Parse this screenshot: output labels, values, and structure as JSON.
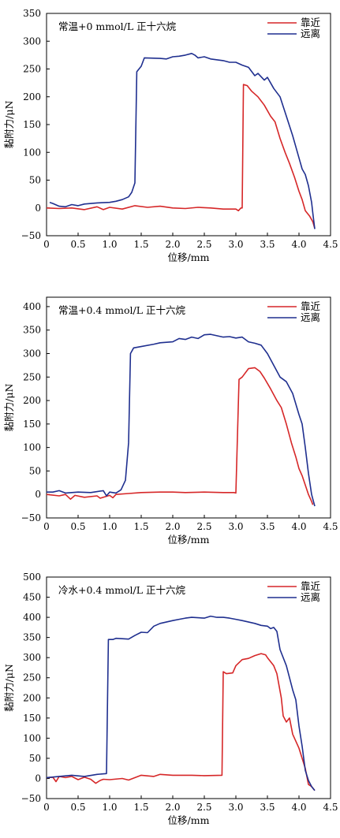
{
  "chart_data": [
    {
      "type": "line",
      "title": "常温+0 mmol/L 正十六烷",
      "xlabel": "位移/mm",
      "ylabel": "黏附力/μN",
      "xlim": [
        0,
        4.5
      ],
      "ylim": [
        -50,
        350
      ],
      "xticks": [
        "0",
        "0.5",
        "1.0",
        "1.5",
        "2.0",
        "2.5",
        "3.0",
        "3.5",
        "4.0",
        "4.5"
      ],
      "yticks": [
        "−50",
        "0",
        "50",
        "100",
        "150",
        "200",
        "250",
        "300",
        "350"
      ],
      "legend_position": "top-right",
      "series": [
        {
          "name": "靠近",
          "color": "#d62728",
          "points": [
            [
              0,
              0
            ],
            [
              0.2,
              -1
            ],
            [
              0.4,
              0
            ],
            [
              0.6,
              -3
            ],
            [
              0.8,
              2
            ],
            [
              0.9,
              -3
            ],
            [
              1.0,
              1
            ],
            [
              1.2,
              -2
            ],
            [
              1.4,
              4
            ],
            [
              1.6,
              1
            ],
            [
              1.8,
              3
            ],
            [
              2.0,
              0
            ],
            [
              2.2,
              -1
            ],
            [
              2.4,
              1
            ],
            [
              2.6,
              0
            ],
            [
              2.8,
              -2
            ],
            [
              3.0,
              -2
            ],
            [
              3.04,
              -5
            ],
            [
              3.08,
              0
            ],
            [
              3.1,
              0
            ],
            [
              3.12,
              222
            ],
            [
              3.18,
              220
            ],
            [
              3.25,
              210
            ],
            [
              3.35,
              200
            ],
            [
              3.45,
              185
            ],
            [
              3.55,
              165
            ],
            [
              3.62,
              155
            ],
            [
              3.7,
              125
            ],
            [
              3.78,
              100
            ],
            [
              3.85,
              80
            ],
            [
              3.93,
              55
            ],
            [
              4.0,
              30
            ],
            [
              4.05,
              15
            ],
            [
              4.1,
              -5
            ],
            [
              4.17,
              -15
            ],
            [
              4.22,
              -25
            ],
            [
              4.25,
              -37
            ]
          ]
        },
        {
          "name": "远离",
          "color": "#1f2f8f",
          "points": [
            [
              0.05,
              10
            ],
            [
              0.1,
              8
            ],
            [
              0.2,
              3
            ],
            [
              0.3,
              2
            ],
            [
              0.4,
              6
            ],
            [
              0.5,
              4
            ],
            [
              0.6,
              7
            ],
            [
              0.8,
              9
            ],
            [
              1.0,
              10
            ],
            [
              1.1,
              12
            ],
            [
              1.2,
              15
            ],
            [
              1.3,
              20
            ],
            [
              1.35,
              28
            ],
            [
              1.4,
              45
            ],
            [
              1.43,
              245
            ],
            [
              1.5,
              255
            ],
            [
              1.55,
              270
            ],
            [
              1.8,
              269
            ],
            [
              1.9,
              268
            ],
            [
              2.0,
              272
            ],
            [
              2.1,
              273
            ],
            [
              2.2,
              275
            ],
            [
              2.3,
              278
            ],
            [
              2.35,
              275
            ],
            [
              2.4,
              270
            ],
            [
              2.5,
              272
            ],
            [
              2.6,
              268
            ],
            [
              2.8,
              265
            ],
            [
              2.9,
              262
            ],
            [
              3.0,
              262
            ],
            [
              3.1,
              257
            ],
            [
              3.2,
              253
            ],
            [
              3.3,
              238
            ],
            [
              3.35,
              242
            ],
            [
              3.45,
              230
            ],
            [
              3.5,
              235
            ],
            [
              3.6,
              215
            ],
            [
              3.7,
              200
            ],
            [
              3.8,
              165
            ],
            [
              3.9,
              130
            ],
            [
              3.95,
              110
            ],
            [
              4.0,
              90
            ],
            [
              4.05,
              70
            ],
            [
              4.1,
              60
            ],
            [
              4.15,
              40
            ],
            [
              4.2,
              10
            ],
            [
              4.22,
              -10
            ],
            [
              4.25,
              -38
            ]
          ]
        }
      ]
    },
    {
      "type": "line",
      "title": "常温+0.4 mmol/L 正十六烷",
      "xlabel": "位移/mm",
      "ylabel": "黏附力/μN",
      "xlim": [
        0,
        4.5
      ],
      "ylim": [
        -50,
        420
      ],
      "xticks": [
        "0",
        "0.5",
        "1.0",
        "1.5",
        "2.0",
        "2.5",
        "3.0",
        "3.5",
        "4.0",
        "4.5"
      ],
      "yticks": [
        "−50",
        "0",
        "50",
        "100",
        "150",
        "200",
        "250",
        "300",
        "350",
        "400"
      ],
      "legend_position": "top-right",
      "series": [
        {
          "name": "靠近",
          "color": "#d62728",
          "points": [
            [
              0,
              0
            ],
            [
              0.2,
              -3
            ],
            [
              0.3,
              0
            ],
            [
              0.38,
              -10
            ],
            [
              0.45,
              -2
            ],
            [
              0.6,
              -6
            ],
            [
              0.8,
              -3
            ],
            [
              0.85,
              -8
            ],
            [
              1.0,
              -2
            ],
            [
              1.05,
              -7
            ],
            [
              1.1,
              0
            ],
            [
              1.3,
              2
            ],
            [
              1.5,
              4
            ],
            [
              1.8,
              5
            ],
            [
              2.0,
              5
            ],
            [
              2.2,
              4
            ],
            [
              2.5,
              5
            ],
            [
              2.8,
              4
            ],
            [
              2.97,
              4
            ],
            [
              3.0,
              3
            ],
            [
              3.05,
              245
            ],
            [
              3.1,
              250
            ],
            [
              3.2,
              268
            ],
            [
              3.3,
              270
            ],
            [
              3.38,
              262
            ],
            [
              3.45,
              248
            ],
            [
              3.55,
              225
            ],
            [
              3.65,
              200
            ],
            [
              3.72,
              185
            ],
            [
              3.8,
              150
            ],
            [
              3.88,
              110
            ],
            [
              3.95,
              80
            ],
            [
              4.0,
              55
            ],
            [
              4.05,
              40
            ],
            [
              4.1,
              20
            ],
            [
              4.15,
              0
            ],
            [
              4.2,
              -15
            ],
            [
              4.22,
              -22
            ]
          ]
        },
        {
          "name": "远离",
          "color": "#1f2f8f",
          "points": [
            [
              0,
              5
            ],
            [
              0.1,
              5
            ],
            [
              0.2,
              8
            ],
            [
              0.3,
              3
            ],
            [
              0.5,
              5
            ],
            [
              0.7,
              4
            ],
            [
              0.9,
              8
            ],
            [
              0.95,
              -3
            ],
            [
              1.0,
              5
            ],
            [
              1.1,
              3
            ],
            [
              1.18,
              10
            ],
            [
              1.25,
              30
            ],
            [
              1.3,
              110
            ],
            [
              1.33,
              300
            ],
            [
              1.38,
              312
            ],
            [
              1.5,
              315
            ],
            [
              1.7,
              320
            ],
            [
              1.8,
              323
            ],
            [
              2.0,
              325
            ],
            [
              2.1,
              332
            ],
            [
              2.2,
              330
            ],
            [
              2.3,
              335
            ],
            [
              2.4,
              332
            ],
            [
              2.5,
              340
            ],
            [
              2.6,
              341
            ],
            [
              2.7,
              338
            ],
            [
              2.8,
              335
            ],
            [
              2.9,
              336
            ],
            [
              3.0,
              333
            ],
            [
              3.1,
              335
            ],
            [
              3.2,
              325
            ],
            [
              3.3,
              322
            ],
            [
              3.4,
              318
            ],
            [
              3.5,
              300
            ],
            [
              3.6,
              275
            ],
            [
              3.7,
              250
            ],
            [
              3.8,
              240
            ],
            [
              3.9,
              215
            ],
            [
              4.0,
              170
            ],
            [
              4.05,
              150
            ],
            [
              4.1,
              100
            ],
            [
              4.15,
              45
            ],
            [
              4.2,
              0
            ],
            [
              4.22,
              -10
            ],
            [
              4.25,
              -25
            ]
          ]
        }
      ]
    },
    {
      "type": "line",
      "title": "冷水+0.4 mmol/L 正十六烷",
      "xlabel": "位移/mm",
      "ylabel": "黏附力/μN",
      "xlim": [
        0,
        4.5
      ],
      "ylim": [
        -50,
        500
      ],
      "xticks": [
        "0",
        "0.5",
        "1.0",
        "1.5",
        "2.0",
        "2.5",
        "3.0",
        "3.5",
        "4.0",
        "4.5"
      ],
      "yticks": [
        "−50",
        "0",
        "50",
        "100",
        "150",
        "200",
        "250",
        "300",
        "350",
        "400",
        "450",
        "500"
      ],
      "legend_position": "top-right",
      "series": [
        {
          "name": "靠近",
          "color": "#d62728",
          "points": [
            [
              0,
              2
            ],
            [
              0.1,
              3
            ],
            [
              0.15,
              -8
            ],
            [
              0.2,
              5
            ],
            [
              0.3,
              2
            ],
            [
              0.4,
              5
            ],
            [
              0.5,
              -3
            ],
            [
              0.6,
              3
            ],
            [
              0.7,
              -2
            ],
            [
              0.78,
              -12
            ],
            [
              0.85,
              -5
            ],
            [
              0.9,
              -2
            ],
            [
              1.0,
              -3
            ],
            [
              1.2,
              0
            ],
            [
              1.3,
              -4
            ],
            [
              1.5,
              8
            ],
            [
              1.7,
              5
            ],
            [
              1.8,
              10
            ],
            [
              2.0,
              8
            ],
            [
              2.3,
              8
            ],
            [
              2.5,
              7
            ],
            [
              2.78,
              8
            ],
            [
              2.8,
              265
            ],
            [
              2.85,
              260
            ],
            [
              2.95,
              262
            ],
            [
              3.0,
              280
            ],
            [
              3.1,
              295
            ],
            [
              3.2,
              298
            ],
            [
              3.3,
              305
            ],
            [
              3.4,
              310
            ],
            [
              3.47,
              307
            ],
            [
              3.5,
              300
            ],
            [
              3.6,
              280
            ],
            [
              3.65,
              260
            ],
            [
              3.72,
              200
            ],
            [
              3.75,
              155
            ],
            [
              3.8,
              140
            ],
            [
              3.85,
              150
            ],
            [
              3.9,
              110
            ],
            [
              4.0,
              75
            ],
            [
              4.05,
              50
            ],
            [
              4.1,
              25
            ],
            [
              4.15,
              -15
            ],
            [
              4.2,
              -20
            ],
            [
              4.25,
              -30
            ]
          ]
        },
        {
          "name": "远离",
          "color": "#1f2f8f",
          "points": [
            [
              0,
              2
            ],
            [
              0.2,
              5
            ],
            [
              0.4,
              8
            ],
            [
              0.6,
              5
            ],
            [
              0.8,
              10
            ],
            [
              0.95,
              12
            ],
            [
              0.98,
              345
            ],
            [
              1.05,
              345
            ],
            [
              1.1,
              348
            ],
            [
              1.3,
              346
            ],
            [
              1.4,
              355
            ],
            [
              1.5,
              363
            ],
            [
              1.6,
              362
            ],
            [
              1.7,
              378
            ],
            [
              1.8,
              385
            ],
            [
              2.0,
              392
            ],
            [
              2.1,
              395
            ],
            [
              2.2,
              398
            ],
            [
              2.3,
              400
            ],
            [
              2.5,
              398
            ],
            [
              2.6,
              403
            ],
            [
              2.7,
              400
            ],
            [
              2.8,
              400
            ],
            [
              2.9,
              398
            ],
            [
              3.0,
              395
            ],
            [
              3.1,
              392
            ],
            [
              3.3,
              385
            ],
            [
              3.4,
              380
            ],
            [
              3.5,
              378
            ],
            [
              3.55,
              372
            ],
            [
              3.6,
              375
            ],
            [
              3.65,
              365
            ],
            [
              3.7,
              320
            ],
            [
              3.8,
              280
            ],
            [
              3.85,
              250
            ],
            [
              3.9,
              220
            ],
            [
              3.95,
              195
            ],
            [
              4.0,
              130
            ],
            [
              4.05,
              80
            ],
            [
              4.1,
              20
            ],
            [
              4.15,
              -5
            ],
            [
              4.2,
              -20
            ],
            [
              4.25,
              -30
            ]
          ]
        }
      ]
    }
  ]
}
